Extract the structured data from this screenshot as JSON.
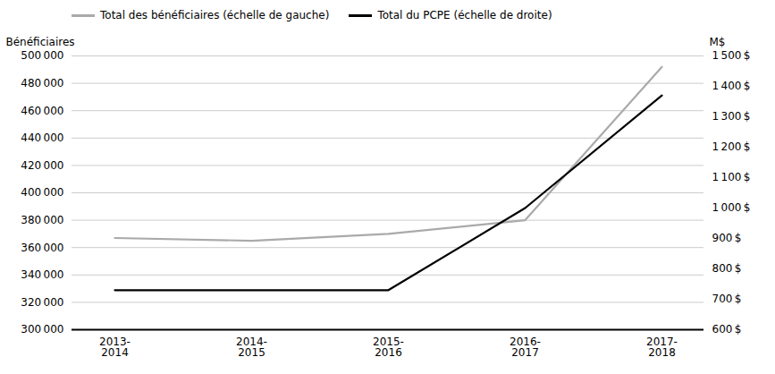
{
  "chart_data": {
    "type": "line",
    "categories": [
      "2013-\n2014",
      "2014-\n2015",
      "2015-\n2016",
      "2016-\n2017",
      "2017-\n2018"
    ],
    "series": [
      {
        "name": "Total des bénéficiaires (échelle de gauche)",
        "color": "#aaaaaa",
        "values": [
          367000,
          365000,
          370000,
          380000,
          492000
        ]
      },
      {
        "name": "Total du PCPE (échelle de droite)",
        "color": "#000000",
        "values": [
          730,
          730,
          730,
          1000,
          1370
        ],
        "axis": "y2"
      }
    ],
    "ylabel": "Bénéficiaires",
    "y2label": "M$",
    "ylim": [
      300000,
      500000
    ],
    "yticks": [
      {
        "value": 300000,
        "label": "300 000"
      },
      {
        "value": 320000,
        "label": "320 000"
      },
      {
        "value": 340000,
        "label": "340 000"
      },
      {
        "value": 360000,
        "label": "360 000"
      },
      {
        "value": 380000,
        "label": "380 000"
      },
      {
        "value": 400000,
        "label": "400 000"
      },
      {
        "value": 420000,
        "label": "420 000"
      },
      {
        "value": 440000,
        "label": "440 000"
      },
      {
        "value": 460000,
        "label": "460 000"
      },
      {
        "value": 480000,
        "label": "480 000"
      },
      {
        "value": 500000,
        "label": "500 000"
      }
    ],
    "y2lim": [
      600,
      1500
    ],
    "y2ticks": [
      {
        "value": 600,
        "label": "600 $"
      },
      {
        "value": 700,
        "label": "700 $"
      },
      {
        "value": 800,
        "label": "800 $"
      },
      {
        "value": 900,
        "label": "900 $"
      },
      {
        "value": 1000,
        "label": "1 000 $"
      },
      {
        "value": 1100,
        "label": "1 100 $"
      },
      {
        "value": 1200,
        "label": "1 200 $"
      },
      {
        "value": 1300,
        "label": "1 300 $"
      },
      {
        "value": 1400,
        "label": "1 400 $"
      },
      {
        "value": 1500,
        "label": "1 500 $"
      }
    ],
    "grid": true,
    "legend": "upper left"
  }
}
